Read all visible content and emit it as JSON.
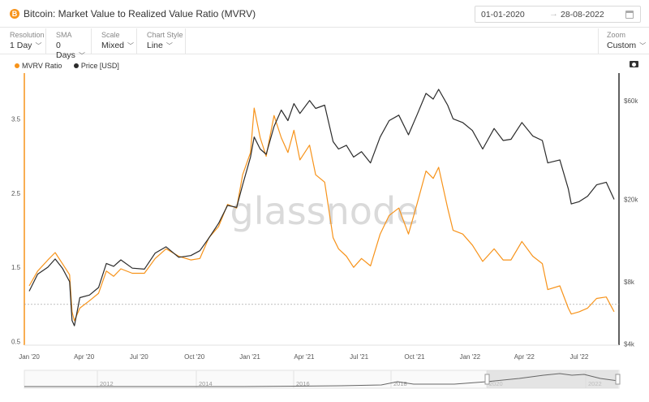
{
  "header": {
    "title": "Bitcoin: Market Value to Realized Value Ratio (MVRV)",
    "date_start": "01-01-2020",
    "date_end": "28-08-2022"
  },
  "controls": [
    {
      "label": "Resolution",
      "value": "1 Day"
    },
    {
      "label": "SMA",
      "value": "0 Days"
    },
    {
      "label": "Scale",
      "value": "Mixed"
    },
    {
      "label": "Chart Style",
      "value": "Line"
    }
  ],
  "zoom": {
    "label": "Zoom",
    "value": "Custom"
  },
  "watermark": "glassnode",
  "colors": {
    "mvrv": "#f7931a",
    "price": "#2b2b2b"
  },
  "chart_data": {
    "type": "line",
    "legend_position": "top-left",
    "x_ticks": [
      "Jan '20",
      "Apr '20",
      "Jul '20",
      "Oct '20",
      "Jan '21",
      "Apr '21",
      "Jul '21",
      "Oct '21",
      "Jan '22",
      "Apr '22",
      "Jul '22"
    ],
    "y_left": {
      "label": "",
      "ticks": [
        "0.5",
        "1.5",
        "2.5",
        "3.5"
      ],
      "range": [
        0.45,
        4.1
      ]
    },
    "y_right": {
      "label": "",
      "scale": "log",
      "ticks": [
        "$4k",
        "$8k",
        "$20k",
        "$60k"
      ],
      "range": [
        3950,
        80000
      ]
    },
    "reference_line_left": 1.0,
    "series": [
      {
        "name": "MVRV Ratio",
        "axis": "left",
        "points": [
          [
            "2020-01-01",
            1.25
          ],
          [
            "2020-01-15",
            1.45
          ],
          [
            "2020-02-01",
            1.6
          ],
          [
            "2020-02-13",
            1.7
          ],
          [
            "2020-02-25",
            1.55
          ],
          [
            "2020-03-08",
            1.4
          ],
          [
            "2020-03-12",
            0.9
          ],
          [
            "2020-03-16",
            0.78
          ],
          [
            "2020-03-25",
            0.95
          ],
          [
            "2020-04-10",
            1.05
          ],
          [
            "2020-04-25",
            1.15
          ],
          [
            "2020-05-08",
            1.45
          ],
          [
            "2020-05-20",
            1.38
          ],
          [
            "2020-06-01",
            1.48
          ],
          [
            "2020-06-20",
            1.42
          ],
          [
            "2020-07-10",
            1.42
          ],
          [
            "2020-07-28",
            1.62
          ],
          [
            "2020-08-15",
            1.75
          ],
          [
            "2020-09-05",
            1.65
          ],
          [
            "2020-09-25",
            1.6
          ],
          [
            "2020-10-10",
            1.62
          ],
          [
            "2020-10-25",
            1.9
          ],
          [
            "2020-11-10",
            2.05
          ],
          [
            "2020-11-25",
            2.35
          ],
          [
            "2020-12-10",
            2.3
          ],
          [
            "2020-12-20",
            2.75
          ],
          [
            "2021-01-02",
            3.05
          ],
          [
            "2021-01-08",
            3.65
          ],
          [
            "2021-01-18",
            3.25
          ],
          [
            "2021-01-28",
            3.0
          ],
          [
            "2021-02-10",
            3.55
          ],
          [
            "2021-02-22",
            3.25
          ],
          [
            "2021-03-05",
            3.05
          ],
          [
            "2021-03-15",
            3.35
          ],
          [
            "2021-03-25",
            2.95
          ],
          [
            "2021-04-10",
            3.15
          ],
          [
            "2021-04-20",
            2.75
          ],
          [
            "2021-05-05",
            2.65
          ],
          [
            "2021-05-19",
            1.9
          ],
          [
            "2021-05-28",
            1.75
          ],
          [
            "2021-06-10",
            1.65
          ],
          [
            "2021-06-22",
            1.5
          ],
          [
            "2021-07-05",
            1.62
          ],
          [
            "2021-07-20",
            1.52
          ],
          [
            "2021-08-05",
            1.95
          ],
          [
            "2021-08-20",
            2.2
          ],
          [
            "2021-09-05",
            2.3
          ],
          [
            "2021-09-21",
            1.95
          ],
          [
            "2021-10-05",
            2.35
          ],
          [
            "2021-10-20",
            2.8
          ],
          [
            "2021-11-01",
            2.7
          ],
          [
            "2021-11-10",
            2.85
          ],
          [
            "2021-11-25",
            2.3
          ],
          [
            "2021-12-04",
            2.0
          ],
          [
            "2021-12-20",
            1.95
          ],
          [
            "2022-01-05",
            1.8
          ],
          [
            "2022-01-22",
            1.58
          ],
          [
            "2022-02-10",
            1.75
          ],
          [
            "2022-02-25",
            1.6
          ],
          [
            "2022-03-10",
            1.6
          ],
          [
            "2022-03-28",
            1.85
          ],
          [
            "2022-04-15",
            1.65
          ],
          [
            "2022-05-01",
            1.55
          ],
          [
            "2022-05-10",
            1.2
          ],
          [
            "2022-05-30",
            1.25
          ],
          [
            "2022-06-13",
            0.95
          ],
          [
            "2022-06-18",
            0.87
          ],
          [
            "2022-07-01",
            0.9
          ],
          [
            "2022-07-15",
            0.95
          ],
          [
            "2022-07-30",
            1.08
          ],
          [
            "2022-08-15",
            1.1
          ],
          [
            "2022-08-28",
            0.9
          ]
        ]
      },
      {
        "name": "Price [USD]",
        "axis": "right",
        "points": [
          [
            "2020-01-01",
            7200
          ],
          [
            "2020-01-15",
            8700
          ],
          [
            "2020-02-01",
            9400
          ],
          [
            "2020-02-13",
            10300
          ],
          [
            "2020-02-25",
            9300
          ],
          [
            "2020-03-08",
            8000
          ],
          [
            "2020-03-12",
            5200
          ],
          [
            "2020-03-16",
            4900
          ],
          [
            "2020-03-25",
            6700
          ],
          [
            "2020-04-10",
            6900
          ],
          [
            "2020-04-25",
            7500
          ],
          [
            "2020-05-08",
            9800
          ],
          [
            "2020-05-20",
            9500
          ],
          [
            "2020-06-01",
            10200
          ],
          [
            "2020-06-20",
            9300
          ],
          [
            "2020-07-10",
            9200
          ],
          [
            "2020-07-28",
            11000
          ],
          [
            "2020-08-15",
            11800
          ],
          [
            "2020-09-05",
            10500
          ],
          [
            "2020-09-25",
            10700
          ],
          [
            "2020-10-10",
            11300
          ],
          [
            "2020-10-25",
            13000
          ],
          [
            "2020-11-10",
            15300
          ],
          [
            "2020-11-25",
            18700
          ],
          [
            "2020-12-10",
            18300
          ],
          [
            "2020-12-20",
            23500
          ],
          [
            "2021-01-02",
            32000
          ],
          [
            "2021-01-08",
            40000
          ],
          [
            "2021-01-18",
            35000
          ],
          [
            "2021-01-28",
            33000
          ],
          [
            "2021-02-10",
            45000
          ],
          [
            "2021-02-22",
            54000
          ],
          [
            "2021-03-05",
            48000
          ],
          [
            "2021-03-15",
            58000
          ],
          [
            "2021-03-25",
            52000
          ],
          [
            "2021-04-10",
            60000
          ],
          [
            "2021-04-20",
            55000
          ],
          [
            "2021-05-05",
            57000
          ],
          [
            "2021-05-19",
            38000
          ],
          [
            "2021-05-28",
            35000
          ],
          [
            "2021-06-10",
            36500
          ],
          [
            "2021-06-22",
            32000
          ],
          [
            "2021-07-05",
            34000
          ],
          [
            "2021-07-20",
            30000
          ],
          [
            "2021-08-05",
            40000
          ],
          [
            "2021-08-20",
            48000
          ],
          [
            "2021-09-05",
            51000
          ],
          [
            "2021-09-21",
            41000
          ],
          [
            "2021-10-05",
            51000
          ],
          [
            "2021-10-20",
            65000
          ],
          [
            "2021-11-01",
            61000
          ],
          [
            "2021-11-10",
            68000
          ],
          [
            "2021-11-25",
            57000
          ],
          [
            "2021-12-04",
            49000
          ],
          [
            "2021-12-20",
            47000
          ],
          [
            "2022-01-05",
            43000
          ],
          [
            "2022-01-22",
            35000
          ],
          [
            "2022-02-10",
            44000
          ],
          [
            "2022-02-25",
            38500
          ],
          [
            "2022-03-10",
            39000
          ],
          [
            "2022-03-28",
            47000
          ],
          [
            "2022-04-15",
            40500
          ],
          [
            "2022-05-01",
            38500
          ],
          [
            "2022-05-10",
            30000
          ],
          [
            "2022-05-30",
            31000
          ],
          [
            "2022-06-13",
            22500
          ],
          [
            "2022-06-18",
            19000
          ],
          [
            "2022-07-01",
            19500
          ],
          [
            "2022-07-15",
            20700
          ],
          [
            "2022-07-30",
            23500
          ],
          [
            "2022-08-15",
            24200
          ],
          [
            "2022-08-28",
            20000
          ]
        ]
      }
    ],
    "navigator": {
      "ticks": [
        "2012",
        "2014",
        "2016",
        "2018",
        "2020",
        "2022"
      ]
    }
  }
}
